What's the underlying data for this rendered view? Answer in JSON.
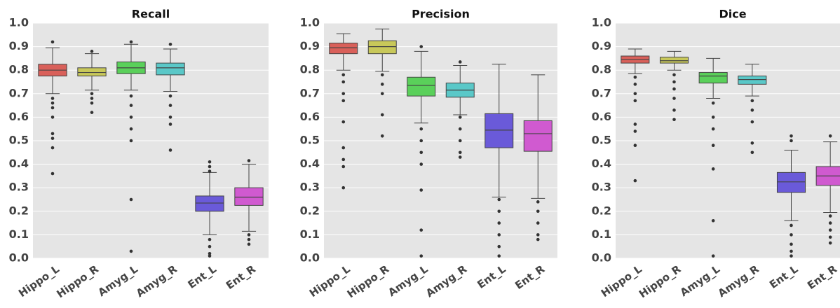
{
  "chart_data": [
    {
      "type": "box",
      "title": "Recall",
      "categories": [
        "Hippo_L",
        "Hippo_R",
        "Amyg_L",
        "Amyg_R",
        "Ent_L",
        "Ent_R"
      ],
      "colors": [
        "#d9605a",
        "#c8c85a",
        "#5ad05a",
        "#5ac8c8",
        "#6a5ad9",
        "#d05ad0"
      ],
      "boxes": [
        {
          "whislo": 0.7,
          "q1": 0.775,
          "med": 0.8,
          "q3": 0.825,
          "whishi": 0.895,
          "fliers": [
            0.92,
            0.68,
            0.66,
            0.64,
            0.6,
            0.53,
            0.51,
            0.47,
            0.36
          ]
        },
        {
          "whislo": 0.715,
          "q1": 0.775,
          "med": 0.79,
          "q3": 0.81,
          "whishi": 0.87,
          "fliers": [
            0.88,
            0.7,
            0.68,
            0.66,
            0.62
          ]
        },
        {
          "whislo": 0.715,
          "q1": 0.785,
          "med": 0.81,
          "q3": 0.835,
          "whishi": 0.91,
          "fliers": [
            0.92,
            0.69,
            0.65,
            0.6,
            0.55,
            0.5,
            0.25,
            0.03
          ]
        },
        {
          "whislo": 0.71,
          "q1": 0.78,
          "med": 0.81,
          "q3": 0.83,
          "whishi": 0.89,
          "fliers": [
            0.91,
            0.69,
            0.65,
            0.6,
            0.57,
            0.46
          ]
        },
        {
          "whislo": 0.1,
          "q1": 0.2,
          "med": 0.235,
          "q3": 0.265,
          "whishi": 0.365,
          "fliers": [
            0.41,
            0.39,
            0.37,
            0.08,
            0.05,
            0.02,
            0.01
          ]
        },
        {
          "whislo": 0.115,
          "q1": 0.225,
          "med": 0.26,
          "q3": 0.3,
          "whishi": 0.4,
          "fliers": [
            0.415,
            0.1,
            0.08,
            0.06
          ]
        }
      ],
      "ylim": [
        0,
        1
      ],
      "yticks": [
        {
          "value": 0,
          "label": "0.0"
        },
        0.1,
        0.2,
        0.3,
        0.4,
        0.5,
        0.6,
        0.7,
        0.8,
        0.9,
        {
          "value": 1,
          "label": "1.0"
        }
      ],
      "grid": true
    },
    {
      "type": "box",
      "title": "Precision",
      "categories": [
        "Hippo_L",
        "Hippo_R",
        "Amyg_L",
        "Amyg_R",
        "Ent_L",
        "Ent_R"
      ],
      "colors": [
        "#d9605a",
        "#c8c85a",
        "#5ad05a",
        "#5ac8c8",
        "#6a5ad9",
        "#d05ad0"
      ],
      "boxes": [
        {
          "whislo": 0.8,
          "q1": 0.87,
          "med": 0.895,
          "q3": 0.915,
          "whishi": 0.955,
          "fliers": [
            0.78,
            0.75,
            0.7,
            0.67,
            0.58,
            0.47,
            0.42,
            0.39,
            0.3
          ]
        },
        {
          "whislo": 0.795,
          "q1": 0.87,
          "med": 0.9,
          "q3": 0.925,
          "whishi": 0.975,
          "fliers": [
            0.78,
            0.74,
            0.7,
            0.61,
            0.52
          ]
        },
        {
          "whislo": 0.575,
          "q1": 0.69,
          "med": 0.735,
          "q3": 0.77,
          "whishi": 0.88,
          "fliers": [
            0.9,
            0.55,
            0.5,
            0.45,
            0.4,
            0.29,
            0.12,
            0.01
          ]
        },
        {
          "whislo": 0.61,
          "q1": 0.685,
          "med": 0.715,
          "q3": 0.745,
          "whishi": 0.82,
          "fliers": [
            0.835,
            0.6,
            0.55,
            0.5,
            0.45,
            0.43
          ]
        },
        {
          "whislo": 0.26,
          "q1": 0.47,
          "med": 0.545,
          "q3": 0.615,
          "whishi": 0.825,
          "fliers": [
            0.25,
            0.2,
            0.15,
            0.1,
            0.05,
            0.01
          ]
        },
        {
          "whislo": 0.255,
          "q1": 0.455,
          "med": 0.53,
          "q3": 0.585,
          "whishi": 0.78,
          "fliers": [
            0.24,
            0.2,
            0.15,
            0.1,
            0.08
          ]
        }
      ],
      "ylim": [
        0,
        1
      ],
      "yticks": [
        {
          "value": 0,
          "label": "0.0"
        },
        0.1,
        0.2,
        0.3,
        0.4,
        0.5,
        0.6,
        0.7,
        0.8,
        0.9,
        {
          "value": 1,
          "label": "1.0"
        }
      ],
      "grid": true
    },
    {
      "type": "box",
      "title": "Dice",
      "categories": [
        "Hippo_L",
        "Hippo_R",
        "Amyg_L",
        "Amyg_R",
        "Ent_L",
        "Ent_R"
      ],
      "colors": [
        "#d9605a",
        "#c8c85a",
        "#5ad05a",
        "#5ac8c8",
        "#6a5ad9",
        "#d05ad0"
      ],
      "boxes": [
        {
          "whislo": 0.785,
          "q1": 0.83,
          "med": 0.845,
          "q3": 0.86,
          "whishi": 0.89,
          "fliers": [
            0.77,
            0.74,
            0.7,
            0.67,
            0.57,
            0.54,
            0.48,
            0.33
          ]
        },
        {
          "whislo": 0.8,
          "q1": 0.83,
          "med": 0.84,
          "q3": 0.855,
          "whishi": 0.88,
          "fliers": [
            0.78,
            0.75,
            0.72,
            0.68,
            0.63,
            0.59
          ]
        },
        {
          "whislo": 0.68,
          "q1": 0.745,
          "med": 0.775,
          "q3": 0.79,
          "whishi": 0.85,
          "fliers": [
            0.66,
            0.6,
            0.55,
            0.48,
            0.38,
            0.16,
            0.01
          ]
        },
        {
          "whislo": 0.69,
          "q1": 0.74,
          "med": 0.76,
          "q3": 0.775,
          "whishi": 0.825,
          "fliers": [
            0.67,
            0.63,
            0.58,
            0.49,
            0.45
          ]
        },
        {
          "whislo": 0.16,
          "q1": 0.28,
          "med": 0.325,
          "q3": 0.365,
          "whishi": 0.46,
          "fliers": [
            0.52,
            0.5,
            0.14,
            0.1,
            0.06,
            0.03,
            0.01
          ]
        },
        {
          "whislo": 0.195,
          "q1": 0.31,
          "med": 0.35,
          "q3": 0.39,
          "whishi": 0.495,
          "fliers": [
            0.52,
            0.18,
            0.15,
            0.12,
            0.09,
            0.065
          ]
        }
      ],
      "ylim": [
        0,
        1
      ],
      "yticks": [
        {
          "value": 0,
          "label": "0.0"
        },
        0.1,
        0.2,
        0.3,
        0.4,
        0.5,
        0.6,
        0.7,
        0.8,
        0.9,
        {
          "value": 1,
          "label": "1.0"
        }
      ],
      "grid": true
    }
  ]
}
